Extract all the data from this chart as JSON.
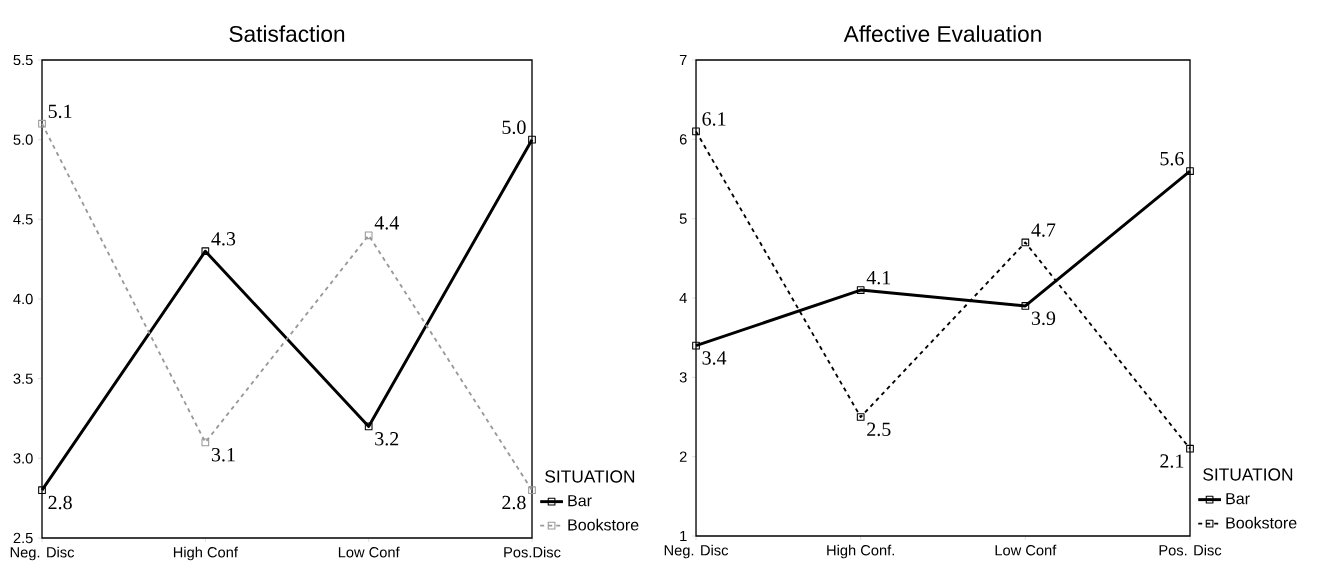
{
  "chart_data": [
    {
      "type": "line",
      "title": "Satisfaction",
      "categories": [
        "Neg. Disc",
        "High Conf",
        "Low Conf",
        "Pos.Disc"
      ],
      "series": [
        {
          "name": "Bar",
          "color": "#000000",
          "line_style": "solid",
          "values": [
            2.8,
            4.3,
            3.2,
            5.0
          ],
          "value_labels": [
            "2.8",
            "4.3",
            "3.2",
            "5.0"
          ]
        },
        {
          "name": "Bookstore",
          "color": "#999999",
          "line_style": "dashed",
          "values": [
            5.1,
            3.1,
            4.4,
            2.8
          ],
          "value_labels": [
            "5.1",
            "3.1",
            "4.4",
            "2.8"
          ]
        }
      ],
      "ylim": [
        2.5,
        5.5
      ],
      "yticks": [
        2.5,
        {
          "value": 3,
          "label": "3.0"
        },
        3.5,
        {
          "value": 4,
          "label": "4.0"
        },
        4.5,
        {
          "value": 5,
          "label": "5.0"
        },
        5.5
      ],
      "grid": false,
      "legend": "bottom right",
      "legend_title": "SITUATION",
      "marker": "square"
    },
    {
      "type": "line",
      "title": "Affective Evaluation",
      "categories": [
        "Neg. Disc",
        "High Conf.",
        "Low Conf",
        "Pos. Disc"
      ],
      "series": [
        {
          "name": "Bar",
          "color": "#000000",
          "line_style": "solid",
          "values": [
            3.4,
            4.1,
            3.9,
            5.6
          ]
        },
        {
          "name": "Bookstore",
          "color": "#000000",
          "line_style": "dashed",
          "values": [
            6.1,
            2.5,
            4.7,
            2.1
          ]
        }
      ],
      "ylim": [
        1,
        7
      ],
      "yticks": [
        1,
        2,
        3,
        4,
        5,
        6,
        7
      ],
      "grid": false,
      "legend": "bottom right",
      "legend_title": "SITUATION",
      "marker": "square",
      "data_labels": true
    }
  ]
}
